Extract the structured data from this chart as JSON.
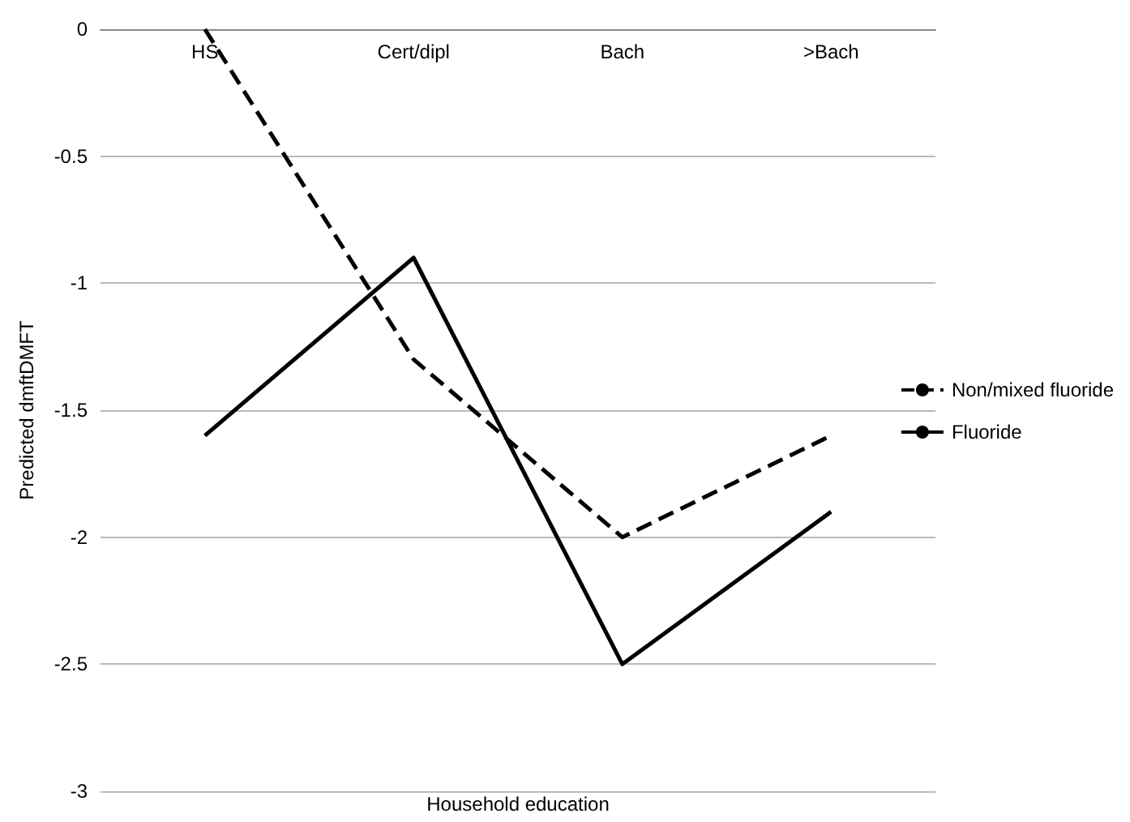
{
  "chart_data": {
    "type": "line",
    "xlabel": "Household education",
    "ylabel": "Predicted dmftDMFT",
    "categories": [
      "HS",
      "Cert/dipl",
      "Bach",
      ">Bach"
    ],
    "series": [
      {
        "name": "Non/mixed fluoride",
        "color": "#000000",
        "line_style": "dashed",
        "values": [
          0,
          -1.3,
          -2,
          -1.6
        ]
      },
      {
        "name": "Fluoride",
        "color": "#000000",
        "line_style": "solid",
        "values": [
          -1.6,
          -0.9,
          -2.5,
          -1.9
        ]
      }
    ],
    "ylim": [
      -3,
      0
    ],
    "yticks": [
      -3,
      -2.5,
      -2,
      -1.5,
      -1,
      -0.5,
      0
    ],
    "grid": "y",
    "legend": "right",
    "marker": "none"
  }
}
